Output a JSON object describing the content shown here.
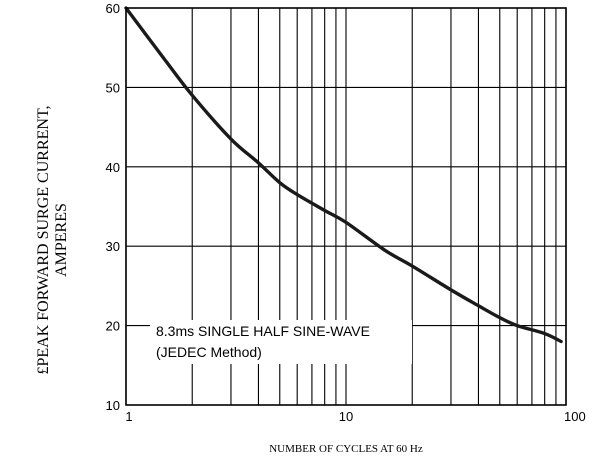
{
  "chart_data": {
    "type": "line",
    "title": "",
    "xlabel": "NUMBER OF CYCLES AT 60 Hz",
    "ylabel_lines": [
      "£PEAK  FORWARD SURGE CURRENT,",
      "AMPERES"
    ],
    "x_scale": "log",
    "xlim": [
      1,
      100
    ],
    "ylim": [
      10,
      60
    ],
    "grid": true,
    "x_ticks": [
      1,
      10,
      100
    ],
    "x_tick_labels": [
      "1",
      "10",
      "100"
    ],
    "x_minor_gridlines": [
      2,
      3,
      4,
      5,
      6,
      7,
      8,
      9,
      20,
      30,
      40,
      50,
      60,
      70,
      80,
      90
    ],
    "y_ticks": [
      10,
      20,
      30,
      40,
      50,
      60
    ],
    "y_tick_labels": [
      "10",
      "20",
      "30",
      "40",
      "50",
      "60"
    ],
    "series": [
      {
        "name": "",
        "x": [
          1,
          1.5,
          2,
          3,
          4,
          5,
          6,
          8,
          10,
          15,
          20,
          30,
          40,
          50,
          60,
          80,
          95
        ],
        "values": [
          60,
          53.5,
          49,
          43.5,
          40.5,
          38,
          36.5,
          34.5,
          33,
          29.5,
          27.5,
          24.5,
          22.5,
          21,
          20,
          19,
          18
        ]
      }
    ],
    "annotation": {
      "lines": [
        "8.3ms SINGLE HALF SINE-WAVE",
        "(JEDEC Method)"
      ]
    },
    "colors": {
      "curve": "#1a1a1a",
      "grid": "#000000",
      "background": "#ffffff"
    }
  }
}
